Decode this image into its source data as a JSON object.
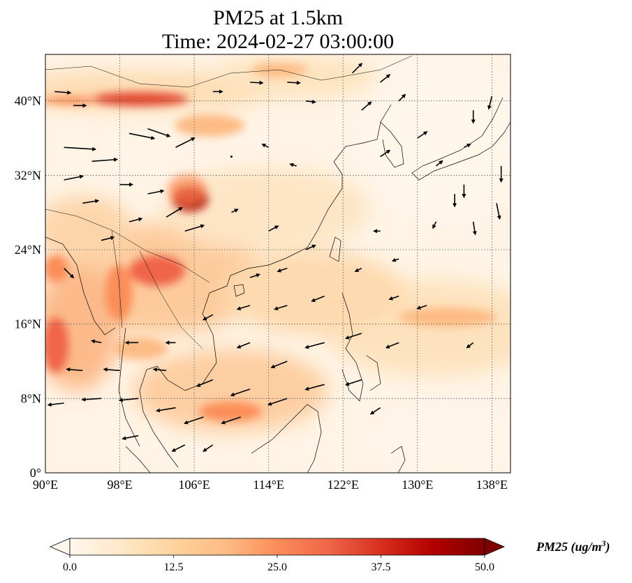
{
  "title": {
    "line1": "PM25 at 1.5km",
    "line2": "Time: 2024-02-27 03:00:00"
  },
  "map": {
    "projection": "PlateCarree",
    "extent": {
      "lon_min": 90,
      "lon_max": 140,
      "lat_min": 0,
      "lat_max": 45
    },
    "gridlines": "dotted",
    "lon_ticks": [
      {
        "value": 90,
        "label": "90°E"
      },
      {
        "value": 98,
        "label": "98°E"
      },
      {
        "value": 106,
        "label": "106°E"
      },
      {
        "value": 114,
        "label": "114°E"
      },
      {
        "value": 122,
        "label": "122°E"
      },
      {
        "value": 130,
        "label": "130°E"
      },
      {
        "value": 138,
        "label": "138°E"
      }
    ],
    "lat_ticks": [
      {
        "value": 0,
        "label": "0°"
      },
      {
        "value": 8,
        "label": "8°N"
      },
      {
        "value": 16,
        "label": "16°N"
      },
      {
        "value": 24,
        "label": "24°N"
      },
      {
        "value": 32,
        "label": "32°N"
      },
      {
        "value": 40,
        "label": "40°N"
      }
    ],
    "pm25_hotspots": [
      {
        "lon": 101,
        "lat": 40,
        "value": 35
      },
      {
        "lon": 104.5,
        "lat": 29,
        "value": 45
      },
      {
        "lon": 102,
        "lat": 21,
        "value": 30
      },
      {
        "lon": 99,
        "lat": 18,
        "value": 25
      },
      {
        "lon": 91,
        "lat": 14,
        "value": 25
      },
      {
        "lon": 110,
        "lat": 7,
        "value": 22
      },
      {
        "lon": 112,
        "lat": 34,
        "value": 18
      },
      {
        "lon": 134,
        "lat": 17,
        "value": 18
      },
      {
        "lon": 96,
        "lat": 24,
        "value": 22
      }
    ],
    "wind_vectors": [
      {
        "lon": 91,
        "lat": 41,
        "u": 2.5,
        "v": -0.2
      },
      {
        "lon": 93,
        "lat": 39.5,
        "u": 2,
        "v": 0
      },
      {
        "lon": 92,
        "lat": 35,
        "u": 5,
        "v": -0.3
      },
      {
        "lon": 95,
        "lat": 33.5,
        "u": 4,
        "v": 0.3
      },
      {
        "lon": 99,
        "lat": 36.5,
        "u": 4,
        "v": -0.8
      },
      {
        "lon": 101,
        "lat": 37,
        "u": 3.5,
        "v": -1.2
      },
      {
        "lon": 104,
        "lat": 35,
        "u": 3,
        "v": 1.5
      },
      {
        "lon": 92,
        "lat": 31.5,
        "u": 3,
        "v": 0.6
      },
      {
        "lon": 94,
        "lat": 29,
        "u": 2.5,
        "v": 0.4
      },
      {
        "lon": 98,
        "lat": 31,
        "u": 2,
        "v": 0
      },
      {
        "lon": 101,
        "lat": 30,
        "u": 2.5,
        "v": 0.5
      },
      {
        "lon": 103,
        "lat": 27.5,
        "u": 2.5,
        "v": 1.5
      },
      {
        "lon": 105,
        "lat": 26,
        "u": 3,
        "v": 0.9
      },
      {
        "lon": 99,
        "lat": 27,
        "u": 2,
        "v": 0.5
      },
      {
        "lon": 96,
        "lat": 25,
        "u": 2,
        "v": 0.5
      },
      {
        "lon": 92,
        "lat": 22,
        "u": 1.5,
        "v": -1.5
      },
      {
        "lon": 110,
        "lat": 34,
        "u": 0,
        "v": 0
      },
      {
        "lon": 114,
        "lat": 35,
        "u": -1,
        "v": 0.5
      },
      {
        "lon": 117,
        "lat": 33,
        "u": -1,
        "v": 0.3
      },
      {
        "lon": 110,
        "lat": 28,
        "u": 1,
        "v": 0.5
      },
      {
        "lon": 114,
        "lat": 26,
        "u": 1.5,
        "v": 0.8
      },
      {
        "lon": 118,
        "lat": 24,
        "u": 1.5,
        "v": 0.7
      },
      {
        "lon": 112,
        "lat": 21,
        "u": 1.5,
        "v": 0.5
      },
      {
        "lon": 116,
        "lat": 22,
        "u": -1.5,
        "v": -0.5
      },
      {
        "lon": 120,
        "lat": 19,
        "u": -2,
        "v": -0.8
      },
      {
        "lon": 116,
        "lat": 18,
        "u": -2,
        "v": -0.6
      },
      {
        "lon": 112,
        "lat": 18,
        "u": -2,
        "v": -0.6
      },
      {
        "lon": 108,
        "lat": 17,
        "u": -1.5,
        "v": -0.8
      },
      {
        "lon": 112,
        "lat": 14,
        "u": -2,
        "v": -0.8
      },
      {
        "lon": 116,
        "lat": 12,
        "u": -2.5,
        "v": -1
      },
      {
        "lon": 120,
        "lat": 14,
        "u": -3,
        "v": -0.8
      },
      {
        "lon": 124,
        "lat": 15,
        "u": -2.5,
        "v": -0.8
      },
      {
        "lon": 128,
        "lat": 14,
        "u": -2,
        "v": -0.8
      },
      {
        "lon": 108,
        "lat": 10,
        "u": -2.5,
        "v": -1
      },
      {
        "lon": 112,
        "lat": 9,
        "u": -3,
        "v": -1
      },
      {
        "lon": 116,
        "lat": 8,
        "u": -3,
        "v": -1
      },
      {
        "lon": 120,
        "lat": 9.5,
        "u": -3,
        "v": -0.8
      },
      {
        "lon": 124,
        "lat": 10,
        "u": -2.5,
        "v": -0.8
      },
      {
        "lon": 107,
        "lat": 6,
        "u": -3,
        "v": -1
      },
      {
        "lon": 111,
        "lat": 6,
        "u": -3,
        "v": -1
      },
      {
        "lon": 104,
        "lat": 7,
        "u": -3,
        "v": -0.5
      },
      {
        "lon": 100,
        "lat": 8,
        "u": -3,
        "v": -0.3
      },
      {
        "lon": 96,
        "lat": 8,
        "u": -3,
        "v": -0.2
      },
      {
        "lon": 92,
        "lat": 7.5,
        "u": -2.5,
        "v": -0.3
      },
      {
        "lon": 94,
        "lat": 11,
        "u": -2.5,
        "v": 0.2
      },
      {
        "lon": 98,
        "lat": 11,
        "u": -2.5,
        "v": 0.2
      },
      {
        "lon": 103,
        "lat": 11,
        "u": -2,
        "v": 0.2
      },
      {
        "lon": 100,
        "lat": 4,
        "u": -2.5,
        "v": -0.5
      },
      {
        "lon": 105,
        "lat": 3,
        "u": -2,
        "v": -1
      },
      {
        "lon": 108,
        "lat": 3,
        "u": -1.5,
        "v": -1
      },
      {
        "lon": 104,
        "lat": 14,
        "u": -1.5,
        "v": 0
      },
      {
        "lon": 100,
        "lat": 14,
        "u": -2,
        "v": 0
      },
      {
        "lon": 96,
        "lat": 14,
        "u": -1.5,
        "v": 0.3
      },
      {
        "lon": 126,
        "lat": 7,
        "u": -1.5,
        "v": -1
      },
      {
        "lon": 118,
        "lat": 40,
        "u": 1.5,
        "v": -0.2
      },
      {
        "lon": 116,
        "lat": 42,
        "u": 2,
        "v": -0.1
      },
      {
        "lon": 112,
        "lat": 42,
        "u": 2,
        "v": -0.1
      },
      {
        "lon": 108,
        "lat": 41,
        "u": 1.5,
        "v": 0
      },
      {
        "lon": 123,
        "lat": 43,
        "u": 1.5,
        "v": 1.5
      },
      {
        "lon": 126,
        "lat": 42,
        "u": 1.5,
        "v": 1.2
      },
      {
        "lon": 128,
        "lat": 40,
        "u": 1,
        "v": 1
      },
      {
        "lon": 124,
        "lat": 39,
        "u": 1.5,
        "v": 1.3
      },
      {
        "lon": 130,
        "lat": 36,
        "u": 1.5,
        "v": 1
      },
      {
        "lon": 126,
        "lat": 34,
        "u": 1.5,
        "v": 1
      },
      {
        "lon": 132,
        "lat": 33,
        "u": 1,
        "v": 0.8
      },
      {
        "lon": 135,
        "lat": 35,
        "u": 1,
        "v": 0.5
      },
      {
        "lon": 136,
        "lat": 39,
        "u": 0,
        "v": -2
      },
      {
        "lon": 138,
        "lat": 40.5,
        "u": -0.5,
        "v": -2
      },
      {
        "lon": 139,
        "lat": 33,
        "u": 0,
        "v": -2.5
      },
      {
        "lon": 138.5,
        "lat": 29,
        "u": 0.5,
        "v": -2.5
      },
      {
        "lon": 135,
        "lat": 31,
        "u": 0,
        "v": -2
      },
      {
        "lon": 136,
        "lat": 27,
        "u": 0.3,
        "v": -2
      },
      {
        "lon": 134,
        "lat": 30,
        "u": 0,
        "v": -2
      },
      {
        "lon": 132,
        "lat": 27,
        "u": -0.5,
        "v": -1
      },
      {
        "lon": 126,
        "lat": 26,
        "u": -1,
        "v": 0
      },
      {
        "lon": 128,
        "lat": 23,
        "u": -1,
        "v": -0.3
      },
      {
        "lon": 124,
        "lat": 22,
        "u": -1,
        "v": -0.5
      },
      {
        "lon": 128,
        "lat": 19,
        "u": -1.5,
        "v": -0.5
      },
      {
        "lon": 131,
        "lat": 18,
        "u": -1.5,
        "v": -0.5
      },
      {
        "lon": 136,
        "lat": 14,
        "u": -1,
        "v": -0.8
      }
    ]
  },
  "colorbar": {
    "cmap": "OrRd",
    "min": 0,
    "max": 50,
    "extend": "both",
    "colors": [
      "#fff7ec",
      "#fee8c8",
      "#fdd49e",
      "#fdbb84",
      "#fc8d59",
      "#ef6548",
      "#d7301f",
      "#b30000",
      "#7f0000"
    ],
    "ticks": [
      {
        "value": 0,
        "label": "0.0"
      },
      {
        "value": 12.5,
        "label": "12.5"
      },
      {
        "value": 25,
        "label": "25.0"
      },
      {
        "value": 37.5,
        "label": "37.5"
      },
      {
        "value": 50,
        "label": "50.0"
      }
    ],
    "label": "PM25 (ug/m",
    "label_sup": "3",
    "label_close": ")"
  }
}
